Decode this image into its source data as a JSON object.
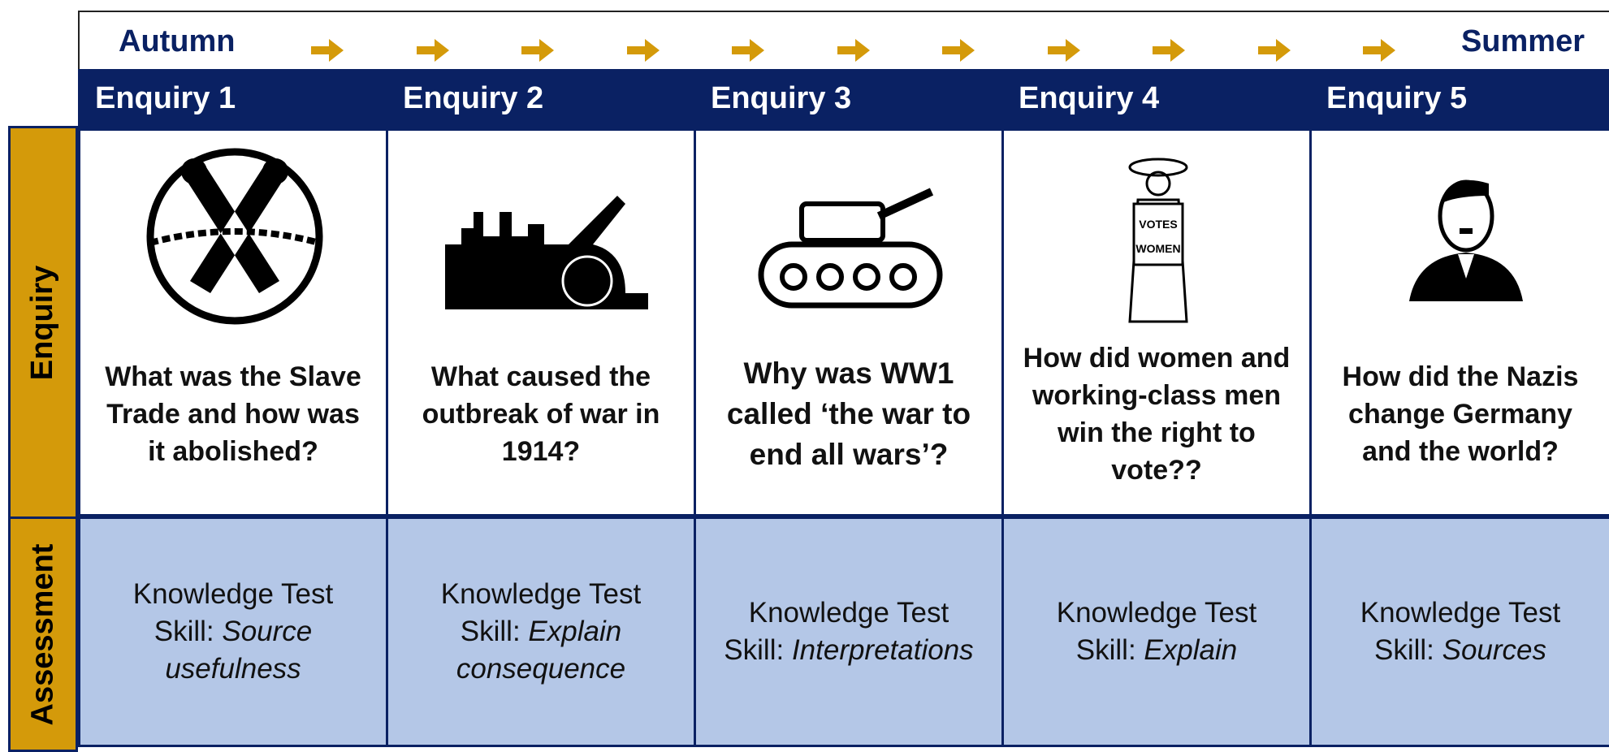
{
  "header": {
    "start": "Autumn",
    "end": "Summer"
  },
  "row_labels": {
    "enquiry": "Enquiry",
    "assessment": "Assessment"
  },
  "enquiries": [
    {
      "title": "Enquiry 1",
      "question": "What was the Slave Trade and how was it abolished?",
      "knowledge": "Knowledge Test",
      "skill_label": "Skill:",
      "skill": "Source usefulness"
    },
    {
      "title": "Enquiry 2",
      "question": "What caused the outbreak of war in 1914?",
      "knowledge": "Knowledge Test",
      "skill_label": "Skill:",
      "skill": "Explain consequence"
    },
    {
      "title": "Enquiry 3",
      "question": "Why was WW1 called ‘the war to end all wars’?",
      "knowledge": "Knowledge Test",
      "skill_label": "Skill:",
      "skill": "Interpretations"
    },
    {
      "title": "Enquiry 4",
      "question": "How did women and working-class men win the right to vote??",
      "knowledge": "Knowledge Test",
      "skill_label": "Skill:",
      "skill": "Explain"
    },
    {
      "title": "Enquiry 5",
      "question": "How did the Nazis change Germany and the world?",
      "knowledge": "Knowledge Test",
      "skill_label": "Skill:",
      "skill": "Sources"
    }
  ]
}
